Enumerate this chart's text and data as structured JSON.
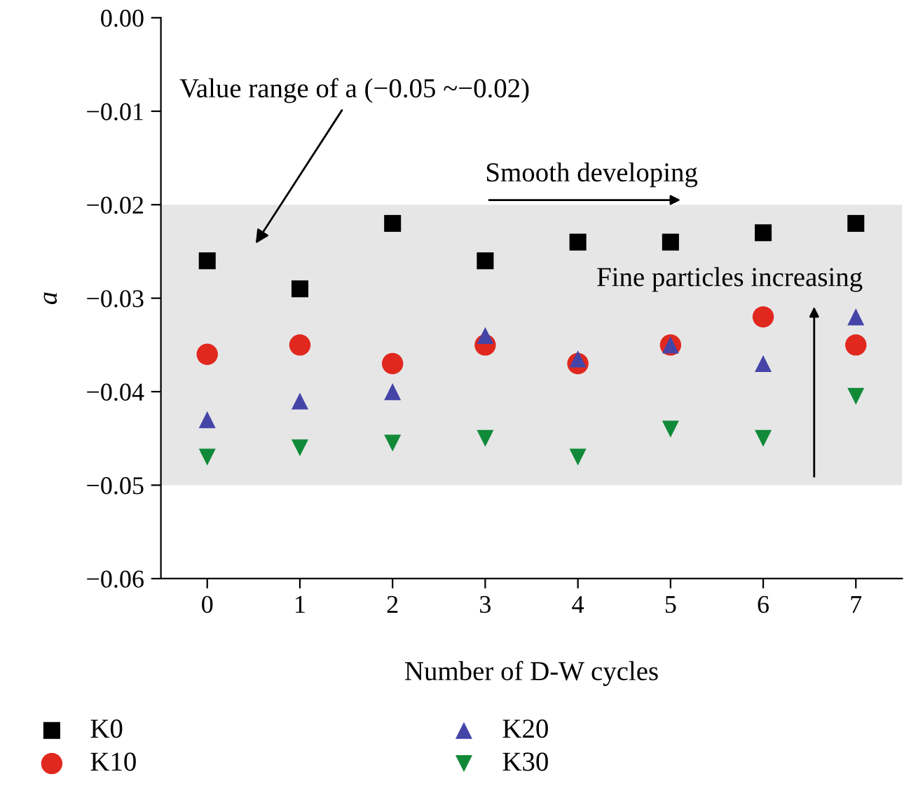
{
  "chart_data": {
    "type": "scatter",
    "xlabel": "Number of D-W cycles",
    "ylabel": "a",
    "categories": [
      "0",
      "1",
      "2",
      "3",
      "4",
      "5",
      "6",
      "7"
    ],
    "series": [
      {
        "name": "K0",
        "color": "#000000",
        "marker": "square",
        "values": [
          -0.026,
          -0.029,
          -0.022,
          -0.026,
          -0.024,
          -0.024,
          -0.023,
          -0.022
        ]
      },
      {
        "name": "K10",
        "color": "#e0281e",
        "marker": "circle",
        "values": [
          -0.036,
          -0.035,
          -0.037,
          -0.035,
          -0.037,
          -0.035,
          -0.032,
          -0.035
        ]
      },
      {
        "name": "K20",
        "color": "#4545a8",
        "marker": "triangle",
        "values": [
          -0.043,
          -0.041,
          -0.04,
          -0.034,
          -0.0365,
          -0.035,
          -0.037,
          -0.032
        ]
      },
      {
        "name": "K30",
        "color": "#108a38",
        "marker": "triangle_down",
        "values": [
          -0.047,
          -0.046,
          -0.0455,
          -0.045,
          -0.047,
          -0.044,
          -0.045,
          -0.0405
        ]
      }
    ],
    "ylim": [
      -0.06,
      0.0
    ],
    "yticks": [
      {
        "value": -0.06,
        "label": "−0.06"
      },
      {
        "value": -0.05,
        "label": "−0.05"
      },
      {
        "value": -0.04,
        "label": "−0.04"
      },
      {
        "value": -0.03,
        "label": "−0.03"
      },
      {
        "value": -0.02,
        "label": "−0.02"
      },
      {
        "value": -0.01,
        "label": "−0.01"
      },
      {
        "value": 0.0,
        "label": "0.00"
      }
    ],
    "bands": [
      {
        "axis": "y",
        "from": -0.05,
        "to": -0.02,
        "color": "#e6e6e6"
      }
    ],
    "annotations": [
      "Value range of a (−0.05 ~−0.02)",
      "Smooth developing",
      "Fine particles increasing"
    ],
    "legend": "bottom",
    "grid": false
  }
}
